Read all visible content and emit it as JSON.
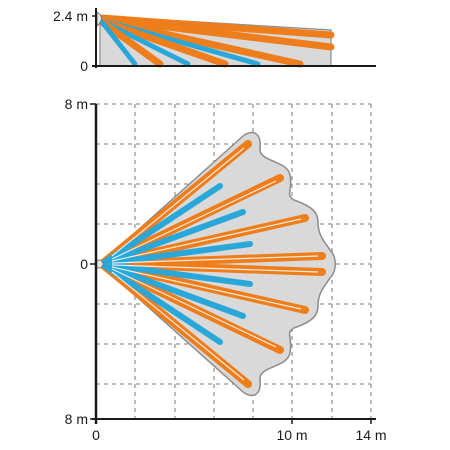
{
  "side_view": {
    "y_labels": [
      "2.4 m",
      "0"
    ]
  },
  "top_view": {
    "y_labels": [
      "8 m",
      "0",
      "8 m"
    ],
    "x_labels": [
      "0",
      "10 m",
      "14 m"
    ]
  },
  "colors": {
    "long_range_beam": "#ee7d1c",
    "short_range_beam": "#2aa7d9",
    "coverage_area": "#d9d9d9",
    "coverage_outline": "#8c8c8c",
    "axis": "#1a1a1a",
    "grid": "#7a7a7a"
  }
}
